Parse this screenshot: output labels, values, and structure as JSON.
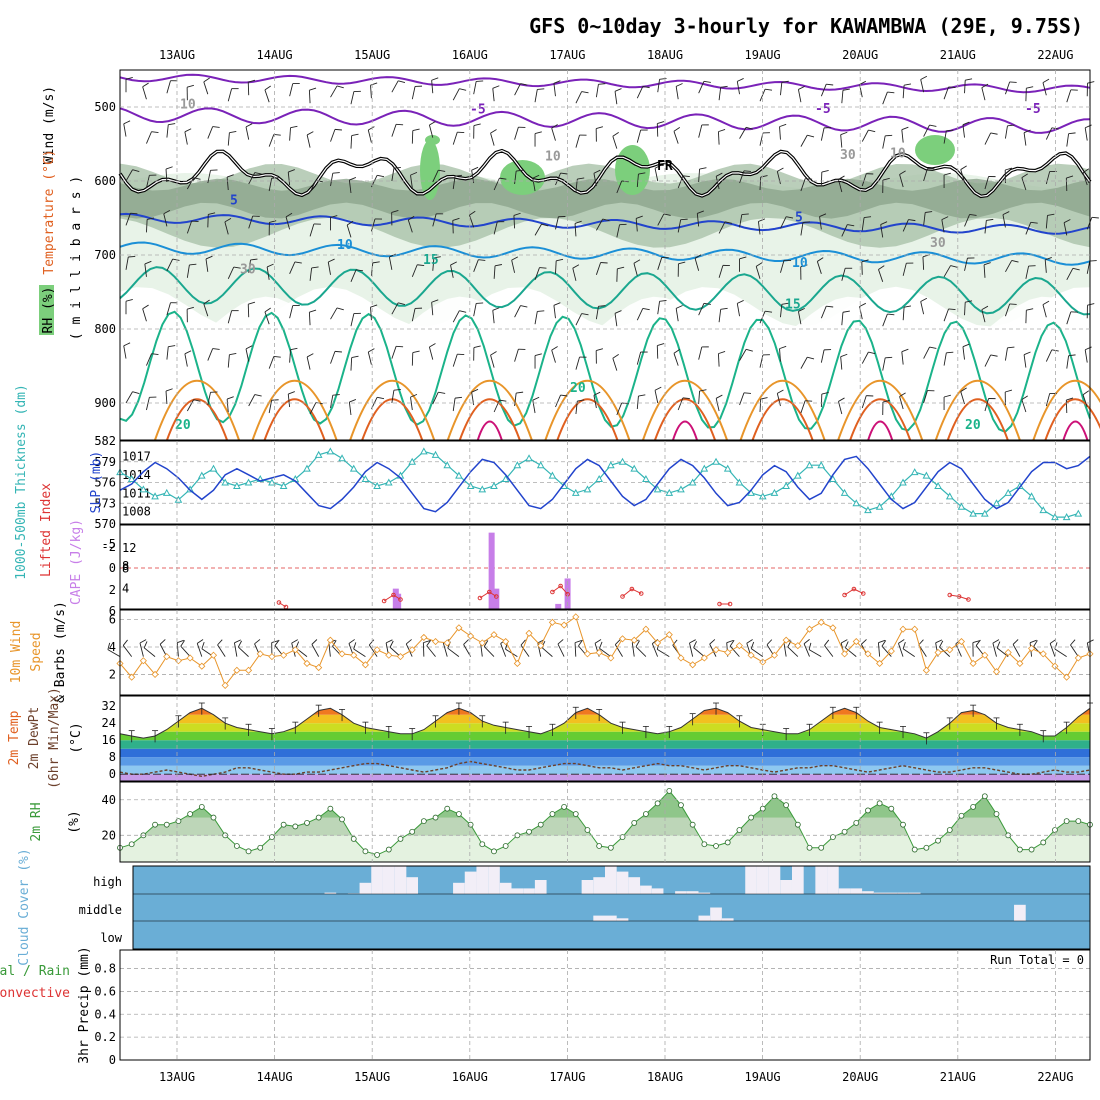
{
  "title": "GFS 0~10day 3-hourly for KAWAMBWA (29E, 9.75S)",
  "dates": [
    "13AUG",
    "14AUG",
    "15AUG",
    "16AUG",
    "17AUG",
    "18AUG",
    "19AUG",
    "20AUG",
    "21AUG",
    "22AUG"
  ],
  "colors": {
    "rh_green": "#7ccf7c",
    "cyan": "#35b5b5",
    "blue": "#2244cc",
    "purple": "#c77ee8",
    "red": "#dd3333",
    "orange": "#e8952a",
    "green_line": "#3a9a3a",
    "cloud_blue": "#6aaed6",
    "cloud_white": "#f2eef7"
  },
  "chart_data": [
    {
      "type": "contour",
      "name": "upper-air",
      "ylabel_parts": [
        "Wind (m/s)",
        "Temperature (°C)",
        "RH (%)"
      ],
      "ylabel_unit": "( m i l l i b a r s )",
      "rh_legend_label": "RH (%)",
      "y_ticks": [
        500,
        600,
        700,
        800,
        900
      ],
      "ylim": [
        450,
        950
      ],
      "contour_labels": {
        "t_minus5": [
          "-5",
          "-5",
          "-5"
        ],
        "t_5": [
          "5",
          "5"
        ],
        "t_10": [
          "10",
          "10",
          "10"
        ],
        "t_15": [
          "15",
          "15"
        ],
        "t_20": [
          "20",
          "20",
          "20"
        ],
        "rh_10": [
          "10",
          "10",
          "10"
        ],
        "rh_30": [
          "30",
          "30",
          "30"
        ],
        "freezing": "FR"
      }
    },
    {
      "type": "line",
      "name": "thickness-slp",
      "ylabel_left": "1000-500mb Thickness (dm)",
      "ylabel_right": "SLP (mb)",
      "y_ticks_left": [
        570,
        573,
        576,
        579,
        582
      ],
      "y_ticks_right": [
        1008,
        1011,
        1014,
        1017
      ],
      "thickness_dm": [
        577.5,
        576.5,
        575,
        574,
        574.5,
        573.5,
        575,
        577,
        578,
        576,
        575.5,
        576,
        576.5,
        576,
        575.5,
        576.5,
        578,
        580,
        580.5,
        579.5,
        578,
        576.5,
        575.5,
        576,
        577,
        579,
        580.5,
        580,
        578.5,
        577,
        575.5,
        575,
        575.5,
        576.5,
        578.5,
        579.5,
        578.5,
        577,
        575.5,
        574.5,
        575,
        576.5,
        578.5,
        579,
        578,
        576.5,
        575,
        574.5,
        575,
        576,
        578,
        579,
        578,
        576,
        574.5,
        574,
        574.5,
        575.5,
        577,
        578.5,
        578.5,
        576.5,
        574.5,
        573,
        572,
        572.5,
        574,
        576,
        577.5,
        577,
        575.5,
        574,
        572.5,
        571.5,
        571.5,
        573,
        574.5,
        575.5,
        574,
        572,
        571,
        571,
        571.5
      ],
      "slp_mb": [
        1011.5,
        1012.5,
        1014.5,
        1016,
        1015,
        1013.5,
        1011.5,
        1010,
        1011.5,
        1014,
        1015,
        1014,
        1013,
        1013.5,
        1014,
        1013,
        1011,
        1009,
        1008.5,
        1010,
        1012,
        1014.5,
        1016,
        1015,
        1013.5,
        1011,
        1008.5,
        1008,
        1009.5,
        1012,
        1014.5,
        1016.5,
        1016,
        1014,
        1011.5,
        1009,
        1008.5,
        1010,
        1012.5,
        1015,
        1016.5,
        1015.5,
        1013,
        1010.5,
        1009,
        1010,
        1012.5,
        1015,
        1016.5,
        1015.5,
        1013.5,
        1011,
        1009,
        1009.5,
        1011.5,
        1014,
        1015.5,
        1014.5,
        1012,
        1010,
        1011,
        1014,
        1016.5,
        1017,
        1015,
        1012.5,
        1010,
        1008.5,
        1009.5,
        1012,
        1014.5,
        1016,
        1015,
        1012.5,
        1010,
        1008.5,
        1009.5,
        1012,
        1014.5,
        1016,
        1016,
        1015,
        1015.5,
        1017
      ]
    },
    {
      "type": "bar",
      "name": "lifted-index-cape",
      "ylabel_left": "Lifted Index",
      "ylabel_right": "CAPE (J/kg)",
      "y_ticks_left": [
        "-5",
        "-2",
        "0",
        "2",
        "6"
      ],
      "y_ticks_right": [
        4,
        8,
        12
      ],
      "cape": [
        {
          "x": 23.6,
          "v": 4
        },
        {
          "x": 23.8,
          "v": 3
        },
        {
          "x": 31.8,
          "v": 15
        },
        {
          "x": 32.2,
          "v": 4
        },
        {
          "x": 37.5,
          "v": 1
        },
        {
          "x": 38.3,
          "v": 6
        }
      ],
      "lifted_index": [
        {
          "x": 13.6,
          "v": 4.6
        },
        {
          "x": 14.2,
          "v": 5.2
        },
        {
          "x": 22.6,
          "v": 4.4
        },
        {
          "x": 23.4,
          "v": 3.6
        },
        {
          "x": 24.0,
          "v": 4.2
        },
        {
          "x": 30.8,
          "v": 4.0
        },
        {
          "x": 31.6,
          "v": 3.2
        },
        {
          "x": 32.2,
          "v": 3.8
        },
        {
          "x": 37.0,
          "v": 3.2
        },
        {
          "x": 37.7,
          "v": 2.4
        },
        {
          "x": 38.3,
          "v": 3.5
        },
        {
          "x": 43.0,
          "v": 3.8
        },
        {
          "x": 43.8,
          "v": 2.8
        },
        {
          "x": 44.6,
          "v": 3.4
        },
        {
          "x": 51.3,
          "v": 4.8
        },
        {
          "x": 52.2,
          "v": 4.8
        },
        {
          "x": 62.0,
          "v": 3.6
        },
        {
          "x": 62.8,
          "v": 2.8
        },
        {
          "x": 63.6,
          "v": 3.4
        },
        {
          "x": 71.0,
          "v": 3.6
        },
        {
          "x": 71.8,
          "v": 3.8
        },
        {
          "x": 72.6,
          "v": 4.2
        }
      ]
    },
    {
      "type": "line",
      "name": "10m-wind",
      "ylabel_parts": [
        "10m Wind",
        "Speed",
        "& Barbs (m/s)"
      ],
      "y_ticks": [
        2,
        4,
        6
      ],
      "speed_ms": [
        2.8,
        1.8,
        3,
        2,
        3.3,
        3,
        3.2,
        2.6,
        3.4,
        1.2,
        2.3,
        2.3,
        3.5,
        3.3,
        3.4,
        3.8,
        2.8,
        2.5,
        4.5,
        3.5,
        3.4,
        2.7,
        3.8,
        3.4,
        3.3,
        3.8,
        4.7,
        4.4,
        4.3,
        5.4,
        4.8,
        4.3,
        4.9,
        4.4,
        2.8,
        5,
        4.1,
        5.8,
        5.6,
        6.2,
        3.5,
        3.6,
        3.2,
        4.6,
        4.5,
        5.3,
        4.3,
        4.9,
        3.2,
        2.7,
        3.2,
        3.8,
        3.6,
        4.1,
        3.4,
        2.9,
        3.4,
        4.5,
        4.1,
        5.3,
        5.8,
        5.4,
        3.5,
        4.4,
        3.5,
        2.8,
        3.7,
        5.3,
        5.3,
        2.3,
        3.6,
        3.8,
        4.4,
        2.8,
        3.4,
        2.2,
        3.6,
        2.8,
        3.9,
        3.5,
        2.6,
        1.8,
        3.2,
        3.5
      ]
    },
    {
      "type": "area",
      "name": "2m-temp",
      "ylabel_parts": [
        "2m Temp",
        "2m DewPt",
        "(6hr Min/Max)",
        "(°C)"
      ],
      "y_ticks": [
        0,
        8,
        16,
        24,
        32
      ],
      "temp_c": [
        19,
        18,
        17,
        18,
        21,
        25,
        29,
        31,
        28,
        24,
        22,
        21,
        20,
        19,
        20,
        22,
        26,
        30,
        31,
        28,
        24,
        22,
        21,
        20,
        19,
        19,
        21,
        25,
        29,
        31,
        29,
        25,
        23,
        22,
        21,
        20,
        19,
        21,
        24,
        29,
        31,
        28,
        24,
        22,
        21,
        20,
        19,
        20,
        22,
        26,
        30,
        31,
        29,
        25,
        22,
        21,
        20,
        19,
        19,
        21,
        25,
        29,
        31,
        29,
        25,
        22,
        21,
        20,
        19,
        17,
        20,
        24,
        29,
        30,
        28,
        24,
        22,
        21,
        20,
        18,
        18,
        22,
        27,
        31
      ],
      "dewpt_c": [
        1,
        0,
        0,
        1,
        2,
        1,
        0,
        -1,
        0,
        1,
        3,
        3,
        2,
        1,
        0,
        0,
        1,
        1,
        2,
        3,
        4,
        5,
        5,
        4,
        3,
        2,
        1,
        2,
        3,
        5,
        6,
        5,
        4,
        3,
        2,
        2,
        3,
        4,
        5,
        5,
        4,
        3,
        3,
        2,
        3,
        4,
        5,
        4,
        4,
        3,
        2,
        3,
        4,
        4,
        3,
        2,
        1,
        2,
        3,
        3,
        4,
        4,
        3,
        2,
        1,
        2,
        3,
        4,
        3,
        2,
        1,
        1,
        2,
        3,
        3,
        2,
        1,
        0,
        0,
        1,
        2,
        1,
        1,
        2
      ]
    },
    {
      "type": "area",
      "name": "2m-rh",
      "ylabel": "2m RH",
      "yunit": "(%)",
      "y_ticks": [
        20,
        40
      ],
      "rh_pct": [
        13,
        15,
        20,
        26,
        26,
        28,
        32,
        36,
        30,
        20,
        14,
        11,
        13,
        19,
        26,
        25,
        27,
        30,
        35,
        29,
        18,
        11,
        9,
        12,
        18,
        22,
        28,
        30,
        35,
        32,
        26,
        15,
        11,
        14,
        20,
        22,
        26,
        32,
        36,
        32,
        23,
        14,
        13,
        19,
        27,
        32,
        38,
        45,
        37,
        26,
        15,
        14,
        16,
        23,
        30,
        35,
        42,
        37,
        26,
        13,
        13,
        19,
        22,
        27,
        34,
        38,
        35,
        26,
        12,
        13,
        17,
        23,
        31,
        36,
        42,
        32,
        20,
        12,
        12,
        16,
        23,
        28,
        28,
        26
      ]
    },
    {
      "type": "heatmap",
      "name": "cloud-cover",
      "ylabel": "Cloud Cover (%)",
      "level_labels": [
        "high",
        "middle",
        "low"
      ],
      "high_pct": [
        0,
        0,
        0,
        0,
        0,
        0,
        0,
        0,
        0,
        0,
        0,
        0,
        0,
        0,
        0,
        0,
        0,
        0,
        5,
        0,
        2,
        40,
        100,
        100,
        100,
        60,
        0,
        0,
        0,
        40,
        80,
        100,
        100,
        40,
        20,
        20,
        50,
        0,
        0,
        0,
        50,
        60,
        100,
        80,
        60,
        30,
        20,
        0,
        10,
        10,
        5,
        0,
        0,
        0,
        100,
        100,
        100,
        50,
        100,
        0,
        100,
        100,
        20,
        20,
        10,
        5,
        5,
        5,
        5,
        0,
        0,
        0,
        0,
        0,
        0,
        0,
        0,
        0,
        0,
        0,
        0,
        0,
        0,
        0
      ],
      "middle_pct": [
        0,
        0,
        0,
        0,
        0,
        0,
        0,
        0,
        0,
        0,
        0,
        0,
        0,
        0,
        0,
        0,
        0,
        0,
        0,
        0,
        0,
        0,
        0,
        0,
        0,
        0,
        0,
        0,
        0,
        0,
        0,
        0,
        0,
        0,
        0,
        0,
        0,
        0,
        0,
        0,
        0,
        20,
        20,
        10,
        0,
        0,
        0,
        0,
        0,
        0,
        20,
        50,
        10,
        0,
        0,
        0,
        0,
        0,
        0,
        0,
        0,
        0,
        0,
        0,
        0,
        0,
        0,
        0,
        0,
        0,
        0,
        0,
        0,
        0,
        0,
        0,
        0,
        60,
        0,
        0,
        0,
        0,
        0,
        0
      ],
      "low_pct": [
        0,
        0,
        0,
        0,
        0,
        0,
        0,
        0,
        0,
        0,
        0,
        0,
        0,
        0,
        0,
        0,
        0,
        0,
        0,
        0,
        0,
        0,
        0,
        0,
        0,
        0,
        0,
        0,
        0,
        0,
        0,
        0,
        0,
        0,
        0,
        0,
        0,
        0,
        0,
        0,
        0,
        0,
        0,
        0,
        0,
        0,
        0,
        0,
        0,
        0,
        0,
        0,
        0,
        0,
        0,
        0,
        0,
        0,
        0,
        0,
        0,
        0,
        0,
        0,
        0,
        0,
        0,
        0,
        0,
        0,
        0,
        0,
        0,
        0,
        0,
        0,
        0,
        0,
        0,
        0,
        0,
        0,
        0,
        0
      ]
    },
    {
      "type": "bar",
      "name": "3hr-precip",
      "ylabel_left_parts": [
        "Total / Rain",
        "Convective"
      ],
      "ylabel_right": "3hr Precip (mm)",
      "y_ticks": [
        "0",
        "0.2",
        "0.4",
        "0.6",
        "0.8"
      ],
      "run_total": "Run Total = 0",
      "ylim": [
        0,
        1
      ]
    }
  ]
}
